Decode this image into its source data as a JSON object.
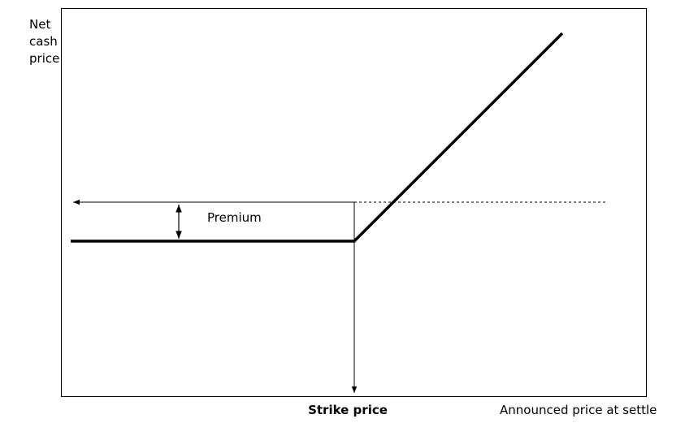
{
  "y_axis_label": [
    "Net",
    "cash",
    "price"
  ],
  "premium_label": "Premium",
  "strike_label": "Strike price",
  "x_axis_label": "Announced price at settle"
}
